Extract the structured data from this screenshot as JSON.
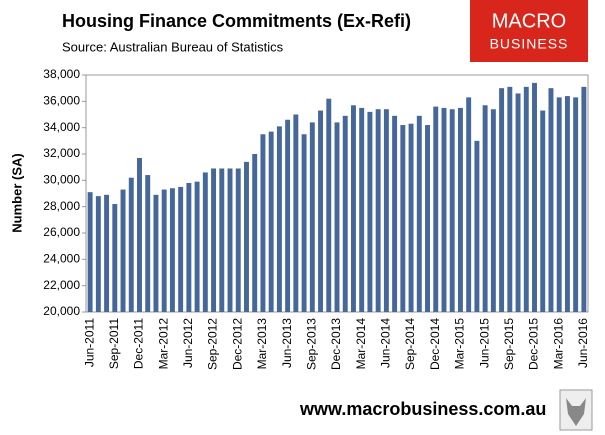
{
  "chart_data": {
    "type": "bar",
    "title": "Housing  Finance Commitments (Ex-Refi)",
    "subtitle": "Source: Australian Bureau of Statistics",
    "logo": [
      "MACRO",
      "BUSINESS"
    ],
    "footer": "www.macrobusiness.com.au",
    "y_label": "Number (SA)",
    "color": "#46679a",
    "grid": false,
    "categories": [
      "Jun-2011",
      null,
      null,
      "Sep-2011",
      null,
      null,
      "Dec-2011",
      null,
      null,
      "Mar-2012",
      null,
      null,
      "Jun-2012",
      null,
      null,
      "Sep-2012",
      null,
      null,
      "Dec-2012",
      null,
      null,
      "Mar-2013",
      null,
      null,
      "Jun-2013",
      null,
      null,
      "Sep-2013",
      null,
      null,
      "Dec-2013",
      null,
      null,
      "Mar-2014",
      null,
      null,
      "Jun-2014",
      null,
      null,
      "Sep-2014",
      null,
      null,
      "Dec-2014",
      null,
      null,
      "Mar-2015",
      null,
      null,
      "Jun-2015",
      null,
      null,
      "Sep-2015",
      null,
      null,
      "Dec-2015",
      null,
      null,
      "Mar-2016",
      null,
      null,
      "Jun-2016"
    ],
    "values": [
      29100,
      28800,
      28900,
      28200,
      29300,
      30200,
      31700,
      30400,
      28900,
      29300,
      29400,
      29500,
      29800,
      29900,
      30600,
      30900,
      30900,
      30900,
      30900,
      31400,
      32000,
      33500,
      33700,
      34100,
      34600,
      35000,
      33500,
      34400,
      35300,
      36200,
      34400,
      34900,
      35700,
      35500,
      35200,
      35400,
      35400,
      34900,
      34200,
      34300,
      34900,
      34200,
      35600,
      35500,
      35400,
      35500,
      36300,
      33000,
      35700,
      35400,
      37000,
      37100,
      36600,
      37100,
      37400,
      35300,
      37000,
      36300,
      36400,
      36300,
      37100
    ],
    "ylim": [
      20000,
      38000
    ],
    "yticks": [
      {
        "value": 20000,
        "label": "20,000"
      },
      {
        "value": 22000,
        "label": "22,000"
      },
      {
        "value": 24000,
        "label": "24,000"
      },
      {
        "value": 26000,
        "label": "26,000"
      },
      {
        "value": 28000,
        "label": "28,000"
      },
      {
        "value": 30000,
        "label": "30,000"
      },
      {
        "value": 32000,
        "label": "32,000"
      },
      {
        "value": 34000,
        "label": "34,000"
      },
      {
        "value": 36000,
        "label": "36,000"
      },
      {
        "value": 38000,
        "label": "38,000"
      }
    ]
  }
}
